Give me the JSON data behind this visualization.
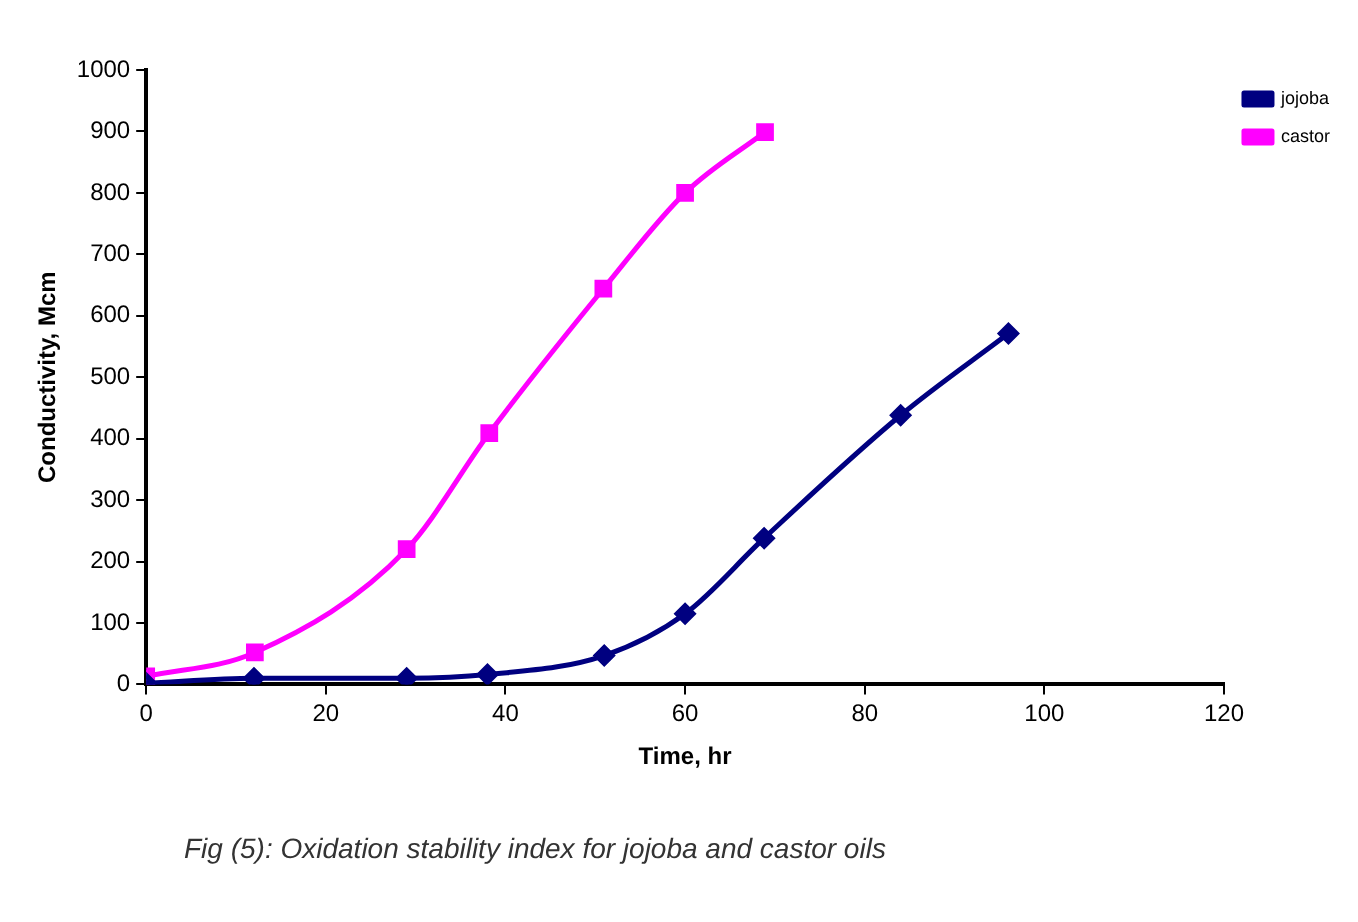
{
  "chart_data": {
    "type": "line",
    "xlabel": "Time, hr",
    "ylabel": "Conductivity, Mcm",
    "xlim": [
      0,
      120
    ],
    "xticks": [
      0,
      20,
      40,
      60,
      80,
      100,
      120
    ],
    "ylim": [
      0,
      1000
    ],
    "yticks": [
      0,
      100,
      200,
      300,
      400,
      500,
      600,
      700,
      800,
      900,
      1000
    ],
    "grid": false,
    "legend": "top right",
    "annotations": [
      "Fig (5): Oxidation stability index for jojoba and castor oils"
    ],
    "series": [
      {
        "name": "jojoba",
        "color": "#000080",
        "marker": "diamond",
        "x": [
          0,
          12,
          29,
          38,
          51,
          60,
          68.8,
          84,
          96
        ],
        "values": [
          2,
          10,
          10,
          16,
          47,
          115,
          238,
          438,
          571
        ]
      },
      {
        "name": "castor",
        "color": "#ff00ff",
        "marker": "square",
        "x": [
          0,
          12.1,
          29,
          38.2,
          50.9,
          60,
          68.9
        ],
        "values": [
          13,
          52,
          220,
          409,
          644,
          800,
          899
        ]
      }
    ]
  }
}
